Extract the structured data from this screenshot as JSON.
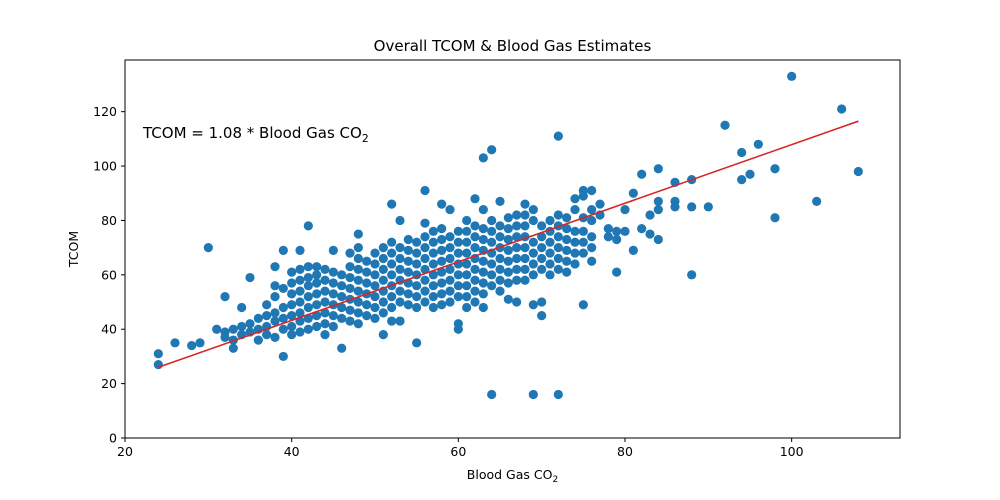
{
  "chart_data": {
    "type": "scatter",
    "title": "Overall TCOM & Blood Gas Estimates",
    "xlabel": "Blood Gas CO",
    "xlabel_subscript": "2",
    "ylabel": "TCOM",
    "xlim": [
      20,
      113
    ],
    "ylim": [
      0,
      139
    ],
    "xticks": [
      20,
      40,
      60,
      80,
      100
    ],
    "yticks": [
      0,
      20,
      40,
      60,
      80,
      100,
      120
    ],
    "grid": false,
    "point_color": "#1f77b4",
    "annotation": {
      "text": "TCOM = 1.08 * Blood Gas CO",
      "subscript": "2"
    },
    "fit_line": {
      "color": "#d62728",
      "x": [
        24,
        108
      ],
      "y": [
        26,
        116.5
      ]
    },
    "points": [
      [
        24,
        31
      ],
      [
        24,
        27
      ],
      [
        26,
        35
      ],
      [
        28,
        34
      ],
      [
        29,
        35
      ],
      [
        30,
        70
      ],
      [
        31,
        40
      ],
      [
        32,
        52
      ],
      [
        32,
        39
      ],
      [
        32,
        37
      ],
      [
        33,
        40
      ],
      [
        33,
        33
      ],
      [
        33,
        36
      ],
      [
        34,
        38
      ],
      [
        34,
        41
      ],
      [
        34,
        48
      ],
      [
        35,
        59
      ],
      [
        35,
        42
      ],
      [
        35,
        39
      ],
      [
        36,
        44
      ],
      [
        36,
        36
      ],
      [
        36,
        40
      ],
      [
        37,
        49
      ],
      [
        37,
        45
      ],
      [
        37,
        41
      ],
      [
        37,
        38
      ],
      [
        38,
        63
      ],
      [
        38,
        56
      ],
      [
        38,
        52
      ],
      [
        38,
        46
      ],
      [
        38,
        43
      ],
      [
        38,
        37
      ],
      [
        39,
        69
      ],
      [
        39,
        30
      ],
      [
        39,
        55
      ],
      [
        39,
        48
      ],
      [
        39,
        44
      ],
      [
        39,
        40
      ],
      [
        40,
        61
      ],
      [
        40,
        57
      ],
      [
        40,
        53
      ],
      [
        40,
        49
      ],
      [
        40,
        45
      ],
      [
        40,
        41
      ],
      [
        40,
        38
      ],
      [
        41,
        69
      ],
      [
        41,
        62
      ],
      [
        41,
        58
      ],
      [
        41,
        54
      ],
      [
        41,
        50
      ],
      [
        41,
        46
      ],
      [
        41,
        43
      ],
      [
        41,
        39
      ],
      [
        42,
        78
      ],
      [
        42,
        63
      ],
      [
        42,
        59
      ],
      [
        42,
        56
      ],
      [
        42,
        52
      ],
      [
        42,
        48
      ],
      [
        42,
        44
      ],
      [
        42,
        40
      ],
      [
        43,
        63
      ],
      [
        43,
        60
      ],
      [
        43,
        57
      ],
      [
        43,
        53
      ],
      [
        43,
        49
      ],
      [
        43,
        45
      ],
      [
        43,
        41
      ],
      [
        44,
        62
      ],
      [
        44,
        58
      ],
      [
        44,
        54
      ],
      [
        44,
        50
      ],
      [
        44,
        46
      ],
      [
        44,
        42
      ],
      [
        44,
        38
      ],
      [
        45,
        69
      ],
      [
        45,
        61
      ],
      [
        45,
        57
      ],
      [
        45,
        53
      ],
      [
        45,
        49
      ],
      [
        45,
        45
      ],
      [
        45,
        41
      ],
      [
        46,
        60
      ],
      [
        46,
        56
      ],
      [
        46,
        52
      ],
      [
        46,
        48
      ],
      [
        46,
        44
      ],
      [
        46,
        33
      ],
      [
        47,
        68
      ],
      [
        47,
        63
      ],
      [
        47,
        59
      ],
      [
        47,
        55
      ],
      [
        47,
        51
      ],
      [
        47,
        47
      ],
      [
        47,
        43
      ],
      [
        48,
        75
      ],
      [
        48,
        70
      ],
      [
        48,
        66
      ],
      [
        48,
        62
      ],
      [
        48,
        58
      ],
      [
        48,
        54
      ],
      [
        48,
        50
      ],
      [
        48,
        46
      ],
      [
        48,
        42
      ],
      [
        49,
        65
      ],
      [
        49,
        61
      ],
      [
        49,
        57
      ],
      [
        49,
        53
      ],
      [
        49,
        49
      ],
      [
        49,
        45
      ],
      [
        50,
        68
      ],
      [
        50,
        64
      ],
      [
        50,
        60
      ],
      [
        50,
        56
      ],
      [
        50,
        52
      ],
      [
        50,
        48
      ],
      [
        50,
        44
      ],
      [
        51,
        70
      ],
      [
        51,
        66
      ],
      [
        51,
        62
      ],
      [
        51,
        58
      ],
      [
        51,
        54
      ],
      [
        51,
        50
      ],
      [
        51,
        46
      ],
      [
        51,
        38
      ],
      [
        52,
        86
      ],
      [
        52,
        72
      ],
      [
        52,
        68
      ],
      [
        52,
        64
      ],
      [
        52,
        60
      ],
      [
        52,
        56
      ],
      [
        52,
        52
      ],
      [
        52,
        48
      ],
      [
        52,
        43
      ],
      [
        53,
        80
      ],
      [
        53,
        70
      ],
      [
        53,
        66
      ],
      [
        53,
        62
      ],
      [
        53,
        58
      ],
      [
        53,
        54
      ],
      [
        53,
        50
      ],
      [
        53,
        43
      ],
      [
        54,
        73
      ],
      [
        54,
        69
      ],
      [
        54,
        65
      ],
      [
        54,
        61
      ],
      [
        54,
        57
      ],
      [
        54,
        53
      ],
      [
        54,
        49
      ],
      [
        55,
        72
      ],
      [
        55,
        68
      ],
      [
        55,
        64
      ],
      [
        55,
        60
      ],
      [
        55,
        56
      ],
      [
        55,
        52
      ],
      [
        55,
        48
      ],
      [
        55,
        35
      ],
      [
        56,
        91
      ],
      [
        56,
        79
      ],
      [
        56,
        74
      ],
      [
        56,
        70
      ],
      [
        56,
        66
      ],
      [
        56,
        62
      ],
      [
        56,
        58
      ],
      [
        56,
        54
      ],
      [
        56,
        50
      ],
      [
        57,
        76
      ],
      [
        57,
        72
      ],
      [
        57,
        68
      ],
      [
        57,
        64
      ],
      [
        57,
        60
      ],
      [
        57,
        56
      ],
      [
        57,
        52
      ],
      [
        57,
        48
      ],
      [
        58,
        86
      ],
      [
        58,
        77
      ],
      [
        58,
        73
      ],
      [
        58,
        69
      ],
      [
        58,
        65
      ],
      [
        58,
        61
      ],
      [
        58,
        57
      ],
      [
        58,
        53
      ],
      [
        58,
        49
      ],
      [
        59,
        84
      ],
      [
        59,
        74
      ],
      [
        59,
        70
      ],
      [
        59,
        66
      ],
      [
        59,
        62
      ],
      [
        59,
        58
      ],
      [
        59,
        54
      ],
      [
        59,
        50
      ],
      [
        60,
        76
      ],
      [
        60,
        72
      ],
      [
        60,
        68
      ],
      [
        60,
        64
      ],
      [
        60,
        60
      ],
      [
        60,
        56
      ],
      [
        60,
        52
      ],
      [
        60,
        42
      ],
      [
        60,
        40
      ],
      [
        61,
        80
      ],
      [
        61,
        76
      ],
      [
        61,
        72
      ],
      [
        61,
        68
      ],
      [
        61,
        64
      ],
      [
        61,
        60
      ],
      [
        61,
        56
      ],
      [
        61,
        52
      ],
      [
        61,
        48
      ],
      [
        62,
        88
      ],
      [
        62,
        78
      ],
      [
        62,
        74
      ],
      [
        62,
        70
      ],
      [
        62,
        66
      ],
      [
        62,
        62
      ],
      [
        62,
        58
      ],
      [
        62,
        54
      ],
      [
        62,
        50
      ],
      [
        63,
        103
      ],
      [
        63,
        84
      ],
      [
        63,
        77
      ],
      [
        63,
        73
      ],
      [
        63,
        69
      ],
      [
        63,
        65
      ],
      [
        63,
        61
      ],
      [
        63,
        57
      ],
      [
        63,
        53
      ],
      [
        63,
        48
      ],
      [
        64,
        106
      ],
      [
        64,
        80
      ],
      [
        64,
        76
      ],
      [
        64,
        72
      ],
      [
        64,
        68
      ],
      [
        64,
        64
      ],
      [
        64,
        60
      ],
      [
        64,
        56
      ],
      [
        64,
        16
      ],
      [
        65,
        87
      ],
      [
        65,
        78
      ],
      [
        65,
        74
      ],
      [
        65,
        70
      ],
      [
        65,
        66
      ],
      [
        65,
        62
      ],
      [
        65,
        58
      ],
      [
        65,
        54
      ],
      [
        66,
        81
      ],
      [
        66,
        77
      ],
      [
        66,
        73
      ],
      [
        66,
        69
      ],
      [
        66,
        65
      ],
      [
        66,
        61
      ],
      [
        66,
        57
      ],
      [
        66,
        51
      ],
      [
        67,
        82
      ],
      [
        67,
        78
      ],
      [
        67,
        74
      ],
      [
        67,
        70
      ],
      [
        67,
        66
      ],
      [
        67,
        62
      ],
      [
        67,
        58
      ],
      [
        67,
        50
      ],
      [
        68,
        86
      ],
      [
        68,
        82
      ],
      [
        68,
        78
      ],
      [
        68,
        74
      ],
      [
        68,
        70
      ],
      [
        68,
        66
      ],
      [
        68,
        62
      ],
      [
        68,
        58
      ],
      [
        69,
        84
      ],
      [
        69,
        80
      ],
      [
        69,
        72
      ],
      [
        69,
        68
      ],
      [
        69,
        64
      ],
      [
        69,
        60
      ],
      [
        69,
        49
      ],
      [
        69,
        16
      ],
      [
        70,
        78
      ],
      [
        70,
        74
      ],
      [
        70,
        70
      ],
      [
        70,
        66
      ],
      [
        70,
        62
      ],
      [
        70,
        50
      ],
      [
        70,
        45
      ],
      [
        71,
        80
      ],
      [
        71,
        76
      ],
      [
        71,
        72
      ],
      [
        71,
        68
      ],
      [
        71,
        64
      ],
      [
        71,
        60
      ],
      [
        72,
        111
      ],
      [
        72,
        82
      ],
      [
        72,
        78
      ],
      [
        72,
        74
      ],
      [
        72,
        70
      ],
      [
        72,
        66
      ],
      [
        72,
        62
      ],
      [
        72,
        16
      ],
      [
        73,
        81
      ],
      [
        73,
        77
      ],
      [
        73,
        73
      ],
      [
        73,
        69
      ],
      [
        73,
        65
      ],
      [
        73,
        61
      ],
      [
        74,
        88
      ],
      [
        74,
        84
      ],
      [
        74,
        76
      ],
      [
        74,
        72
      ],
      [
        74,
        68
      ],
      [
        74,
        64
      ],
      [
        75,
        91
      ],
      [
        75,
        89
      ],
      [
        75,
        81
      ],
      [
        75,
        76
      ],
      [
        75,
        72
      ],
      [
        75,
        68
      ],
      [
        75,
        49
      ],
      [
        76,
        91
      ],
      [
        76,
        84
      ],
      [
        76,
        80
      ],
      [
        76,
        74
      ],
      [
        76,
        70
      ],
      [
        76,
        65
      ],
      [
        77,
        86
      ],
      [
        77,
        82
      ],
      [
        78,
        77
      ],
      [
        78,
        74
      ],
      [
        79,
        76
      ],
      [
        79,
        73
      ],
      [
        79,
        61
      ],
      [
        80,
        84
      ],
      [
        80,
        76
      ],
      [
        81,
        90
      ],
      [
        81,
        69
      ],
      [
        82,
        97
      ],
      [
        82,
        77
      ],
      [
        83,
        82
      ],
      [
        83,
        75
      ],
      [
        84,
        99
      ],
      [
        84,
        87
      ],
      [
        84,
        84
      ],
      [
        84,
        73
      ],
      [
        86,
        94
      ],
      [
        86,
        87
      ],
      [
        86,
        85
      ],
      [
        88,
        95
      ],
      [
        88,
        85
      ],
      [
        88,
        60
      ],
      [
        90,
        85
      ],
      [
        92,
        115
      ],
      [
        94,
        105
      ],
      [
        94,
        95
      ],
      [
        95,
        97
      ],
      [
        96,
        108
      ],
      [
        98,
        99
      ],
      [
        98,
        81
      ],
      [
        100,
        133
      ],
      [
        103,
        87
      ],
      [
        106,
        121
      ],
      [
        108,
        98
      ]
    ]
  }
}
